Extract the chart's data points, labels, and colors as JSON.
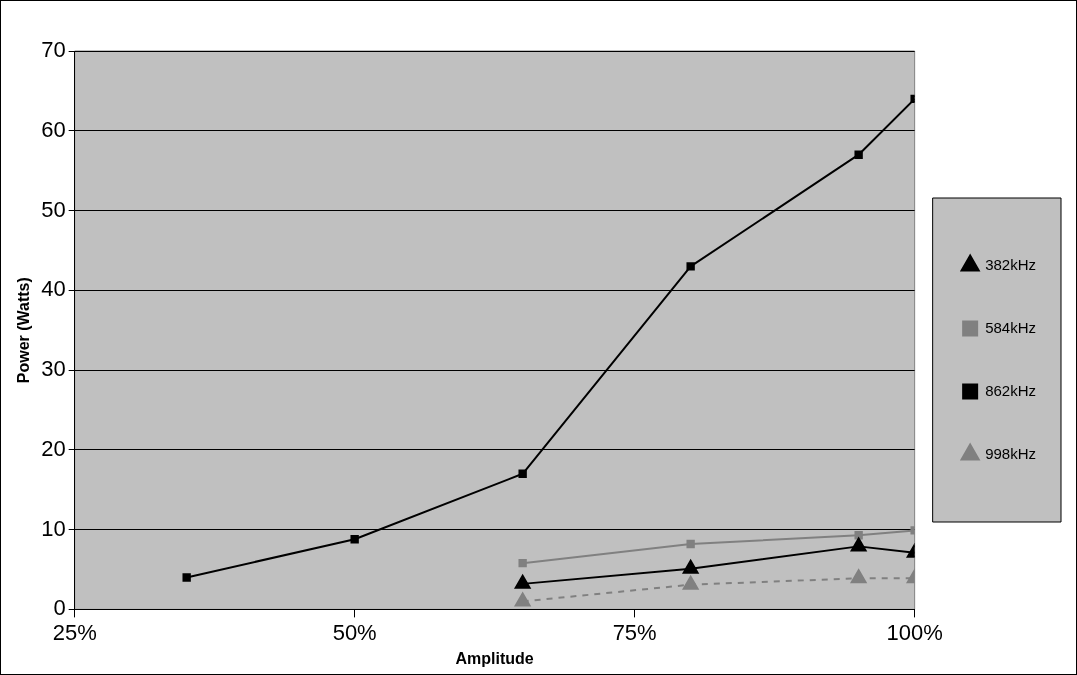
{
  "chart_data": {
    "type": "line",
    "xlabel": "Amplitude",
    "ylabel": "Power (Watts)",
    "xlim": [
      25,
      100
    ],
    "xticks": [
      {
        "value": 25,
        "label": "25%"
      },
      {
        "value": 50,
        "label": "50%"
      },
      {
        "value": 75,
        "label": "75%"
      },
      {
        "value": 100,
        "label": "100%"
      }
    ],
    "ylim": [
      0,
      70
    ],
    "yticks": [
      0,
      10,
      20,
      30,
      40,
      50,
      60,
      70
    ],
    "grid": "y",
    "legend": "right",
    "series": [
      {
        "name": "382kHz",
        "color": "#000000",
        "marker": "triangle",
        "line_style": "solid",
        "x": [
          65,
          80,
          95,
          100
        ],
        "values": [
          3.2,
          5.1,
          7.9,
          7.1
        ]
      },
      {
        "name": "584kHz",
        "color": "#808080",
        "marker": "square",
        "line_style": "solid",
        "x": [
          65,
          80,
          95,
          100
        ],
        "values": [
          5.8,
          8.2,
          9.3,
          9.9
        ]
      },
      {
        "name": "862kHz",
        "color": "#000000",
        "marker": "square",
        "line_style": "solid",
        "x": [
          35,
          50,
          65,
          80,
          95,
          100
        ],
        "values": [
          4,
          8.8,
          17,
          43,
          57,
          64
        ]
      },
      {
        "name": "998kHz",
        "color": "#808080",
        "marker": "triangle",
        "line_style": "dashed",
        "x": [
          65,
          80,
          95,
          100
        ],
        "values": [
          1,
          3.1,
          3.9,
          3.9
        ]
      }
    ]
  }
}
